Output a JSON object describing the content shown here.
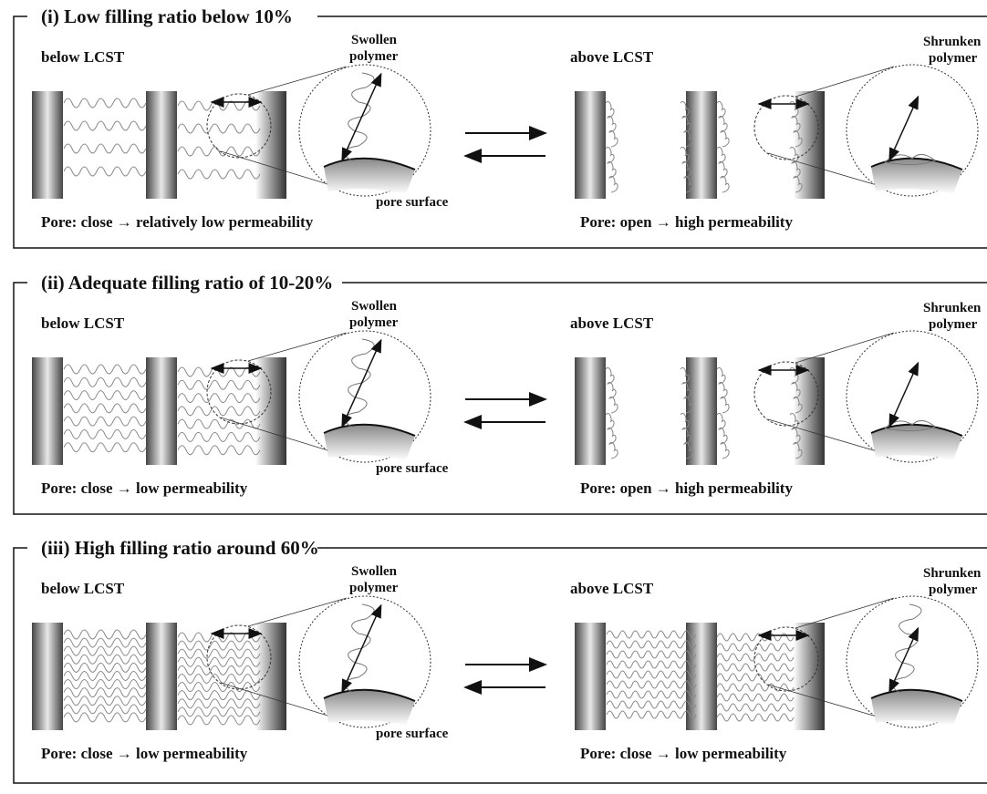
{
  "panels": [
    {
      "title": "(i) Low filling ratio below 10%",
      "left_state": "below LCST",
      "right_state": "above LCST",
      "swollen_label": [
        "Swollen",
        "polymer"
      ],
      "shrunken_label": [
        "Shrunken",
        "polymer"
      ],
      "pore_surface": "pore surface",
      "left_caption": "Pore: close → relatively low permeability",
      "right_caption": "Pore: open → high permeability"
    },
    {
      "title": "(ii) Adequate filling ratio of 10-20%",
      "left_state": "below LCST",
      "right_state": "above LCST",
      "swollen_label": [
        "Swollen",
        "polymer"
      ],
      "shrunken_label": [
        "Shrunken",
        "polymer"
      ],
      "pore_surface": "pore surface",
      "left_caption": "Pore: close → low permeability",
      "right_caption": "Pore: open → high permeability"
    },
    {
      "title": "(iii) High filling ratio around 60%",
      "left_state": "below LCST",
      "right_state": "above LCST",
      "swollen_label": [
        "Swollen",
        "polymer"
      ],
      "shrunken_label": [
        "Shrunken",
        "polymer"
      ],
      "pore_surface": "pore surface",
      "left_caption": "Pore: close → low permeability",
      "right_caption": "Pore: close → low permeability"
    }
  ]
}
